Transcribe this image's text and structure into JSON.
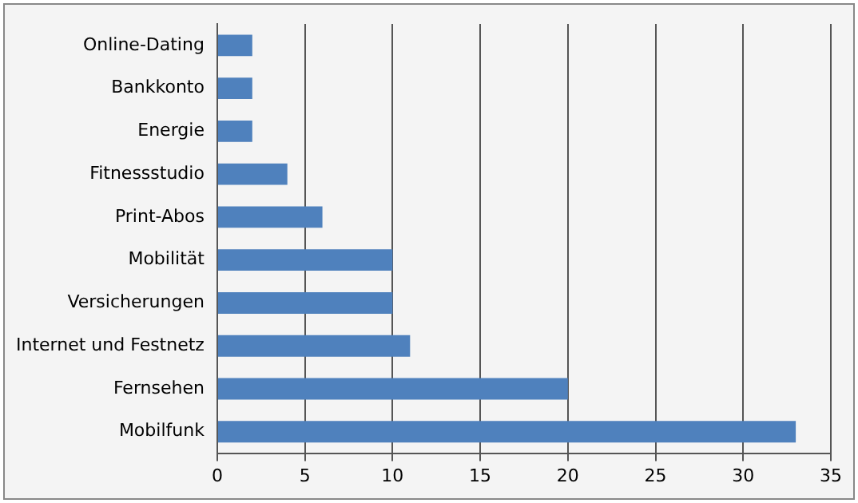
{
  "chart_data": {
    "type": "bar",
    "orientation": "horizontal",
    "categories": [
      "Online-Dating",
      "Bankkonto",
      "Energie",
      "Fitnessstudio",
      "Print-Abos",
      "Mobilität",
      "Versicherungen",
      "Internet und Festnetz",
      "Fernsehen",
      "Mobilfunk"
    ],
    "values": [
      2,
      2,
      2,
      4,
      6,
      10,
      10,
      11,
      20,
      33
    ],
    "color": "#4f81bd",
    "xlim": [
      0,
      35
    ],
    "xticks": [
      0,
      5,
      10,
      15,
      20,
      25,
      30,
      35
    ],
    "grid": "x"
  }
}
